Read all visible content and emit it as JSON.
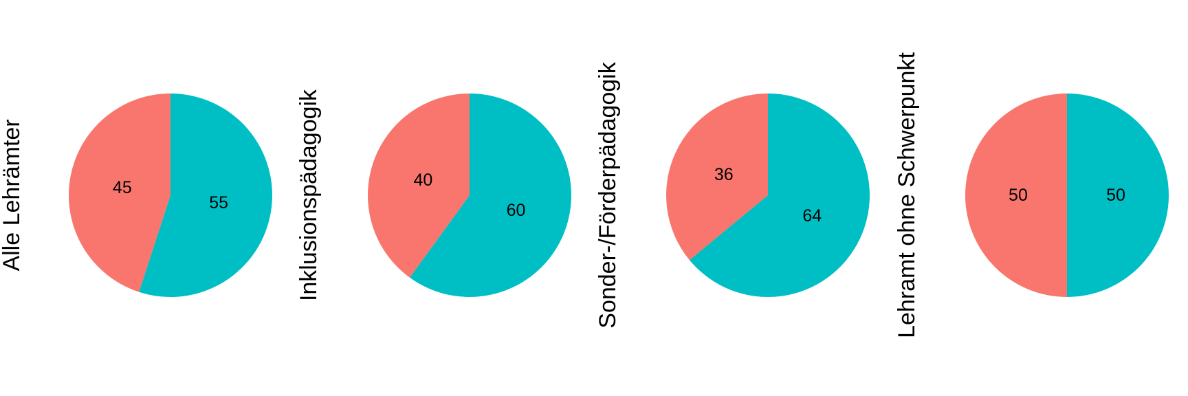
{
  "colors": {
    "slice_a": "#F8766D",
    "slice_b": "#00BFC4",
    "background": "#FFFFFF"
  },
  "chart_data": [
    {
      "type": "pie",
      "title": "Alle Lehrämter",
      "values": [
        45,
        55
      ],
      "labels": [
        "45",
        "55"
      ]
    },
    {
      "type": "pie",
      "title": "Inklusionspädagogik",
      "values": [
        40,
        60
      ],
      "labels": [
        "40",
        "60"
      ]
    },
    {
      "type": "pie",
      "title": "Sonder-/Förderpädagogik",
      "values": [
        36,
        64
      ],
      "labels": [
        "36",
        "64"
      ]
    },
    {
      "type": "pie",
      "title": "Lehramt ohne Schwerpunkt",
      "values": [
        50,
        50
      ],
      "labels": [
        "50",
        "50"
      ]
    }
  ]
}
